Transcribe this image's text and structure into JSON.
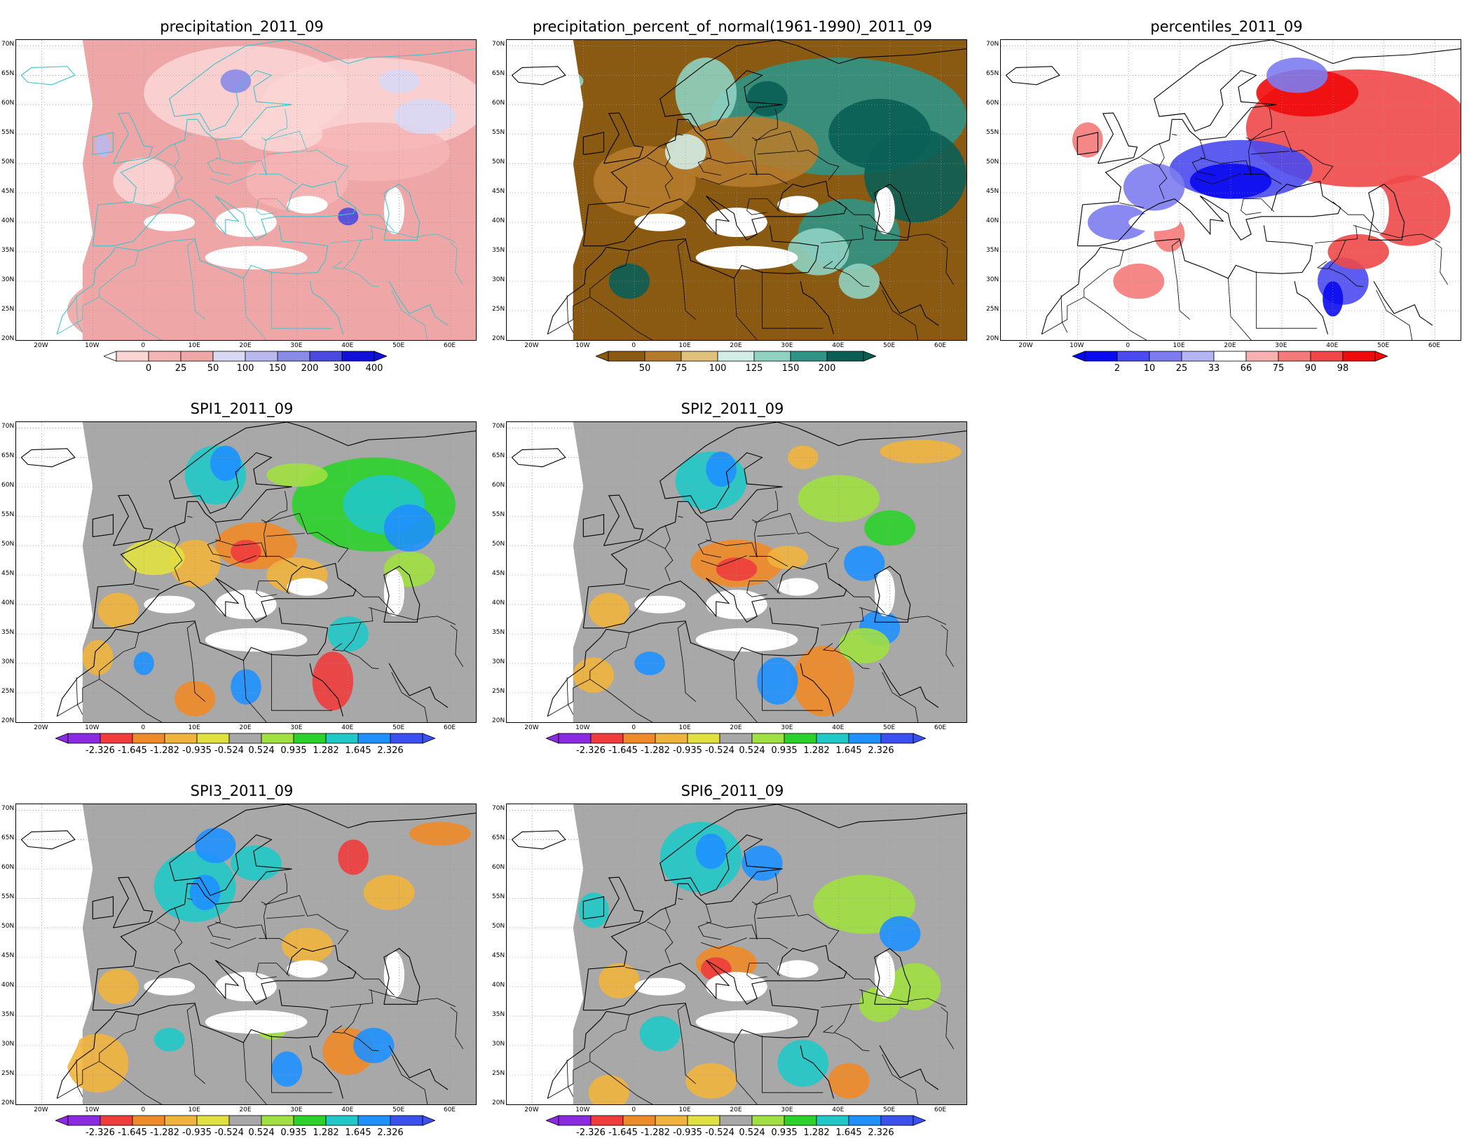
{
  "lat_labels": [
    "70N",
    "65N",
    "60N",
    "55N",
    "50N",
    "45N",
    "40N",
    "35N",
    "30N",
    "25N",
    "20N"
  ],
  "lon_labels": [
    "20W",
    "10W",
    "0",
    "10E",
    "20E",
    "30E",
    "40E",
    "50E",
    "60E"
  ],
  "colors": {
    "precip": [
      "#fbd4d4",
      "#f5b5b5",
      "#eea6a6",
      "#d8d8f4",
      "#b9b9f0",
      "#8a8ae8",
      "#4a4ae0",
      "#1010d8"
    ],
    "pct": [
      "#8b5a12",
      "#b57b2c",
      "#e0c07a",
      "#d2ece6",
      "#8fd2c2",
      "#2f9485",
      "#0a5e55"
    ],
    "perc": [
      "#0a0af0",
      "#4a4af0",
      "#7c7cf0",
      "#b4b4f4",
      "#ffffff",
      "#f8b0b0",
      "#f47a7a",
      "#f04848",
      "#f00a0a"
    ],
    "spi": [
      "#8a2be2",
      "#f03c3c",
      "#f08a28",
      "#f0b43c",
      "#e0e040",
      "#a8a8a8",
      "#a0e040",
      "#2ad22a",
      "#20c8c8",
      "#1e90ff",
      "#3c50f0"
    ]
  },
  "panels": [
    {
      "id": "precipitation",
      "title": "precipitation_2011_09",
      "palette": "precip",
      "colorbar_labels": [
        "0",
        "25",
        "50",
        "100",
        "150",
        "200",
        "300",
        "400"
      ],
      "extend": "max"
    },
    {
      "id": "percent-of-normal",
      "title": "precipitation_percent_of_normal(1961-1990)_2011_09",
      "palette": "pct",
      "colorbar_labels": [
        "50",
        "75",
        "100",
        "125",
        "150",
        "200"
      ],
      "extend": "both"
    },
    {
      "id": "percentiles",
      "title": "percentiles_2011_09",
      "palette": "perc",
      "colorbar_labels": [
        "2",
        "10",
        "25",
        "33",
        "66",
        "75",
        "90",
        "98"
      ],
      "extend": "both"
    },
    {
      "id": "spi1",
      "title": "SPI1_2011_09",
      "palette": "spi",
      "colorbar_labels": [
        "-2.326",
        "-1.645",
        "-1.282",
        "-0.935",
        "-0.524",
        "0.524",
        "0.935",
        "1.282",
        "1.645",
        "2.326"
      ],
      "extend": "both"
    },
    {
      "id": "spi2",
      "title": "SPI2_2011_09",
      "palette": "spi",
      "colorbar_labels": [
        "-2.326",
        "-1.645",
        "-1.282",
        "-0.935",
        "-0.524",
        "0.524",
        "0.935",
        "1.282",
        "1.645",
        "2.326"
      ],
      "extend": "both"
    },
    {
      "id": "spi3",
      "title": "SPI3_2011_09",
      "palette": "spi",
      "colorbar_labels": [
        "-2.326",
        "-1.645",
        "-1.282",
        "-0.935",
        "-0.524",
        "0.524",
        "0.935",
        "1.282",
        "1.645",
        "2.326"
      ],
      "extend": "both"
    },
    {
      "id": "spi6",
      "title": "SPI6_2011_09",
      "palette": "spi",
      "colorbar_labels": [
        "-2.326",
        "-1.645",
        "-1.282",
        "-0.935",
        "-0.524",
        "0.524",
        "0.935",
        "1.282",
        "1.645",
        "2.326"
      ],
      "extend": "both"
    }
  ]
}
